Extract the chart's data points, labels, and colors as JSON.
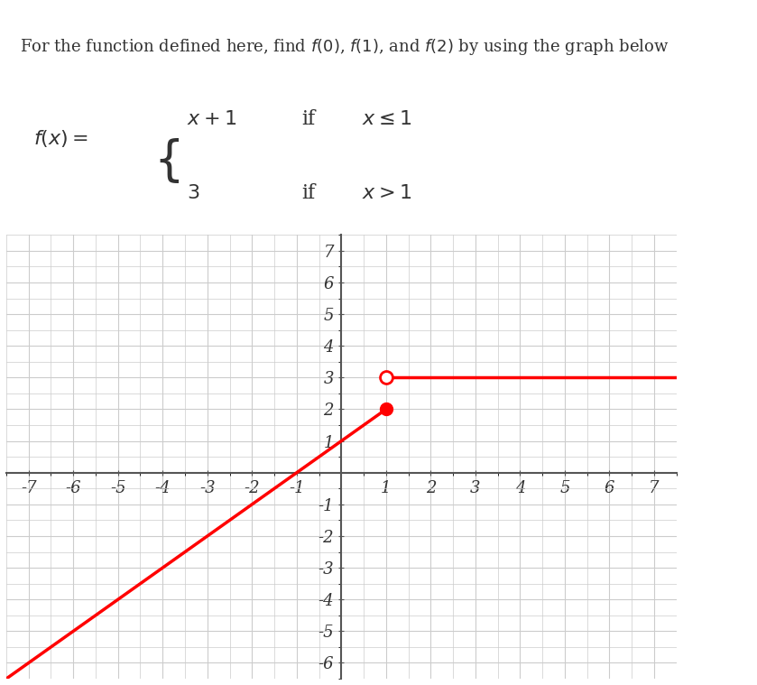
{
  "title_text": "For the function defined here, find $f(0)$, $f(1)$, and $f(2)$ by using the graph below",
  "formula_line1": "$f(x) = \\begin{cases} x + 1 & \\text{if} \\quad x \\leq 1 \\\\ 3 & \\text{if} \\quad x > 1 \\end{cases}$",
  "xlim": [
    -7.5,
    7.5
  ],
  "ylim": [
    -6.5,
    7.5
  ],
  "xticks": [
    -7,
    -6,
    -5,
    -4,
    -3,
    -2,
    -1,
    1,
    2,
    3,
    4,
    5,
    6,
    7
  ],
  "yticks": [
    -6,
    -5,
    -4,
    -3,
    -2,
    -1,
    1,
    2,
    3,
    4,
    5,
    6,
    7
  ],
  "line_color": "#ff0000",
  "line_width": 2.5,
  "bg_color": "#ffffff",
  "grid_color": "#cccccc",
  "axis_color": "#555555",
  "text_color": "#333333",
  "piece1_x_start": -7.5,
  "piece1_x_end": 1,
  "piece2_x_start": 1,
  "piece2_x_end": 7.5,
  "piece2_y": 3,
  "open_dot_x": 1,
  "open_dot_y": 3,
  "closed_dot_x": 1,
  "closed_dot_y": 2,
  "dot_size": 10,
  "font_family": "serif"
}
